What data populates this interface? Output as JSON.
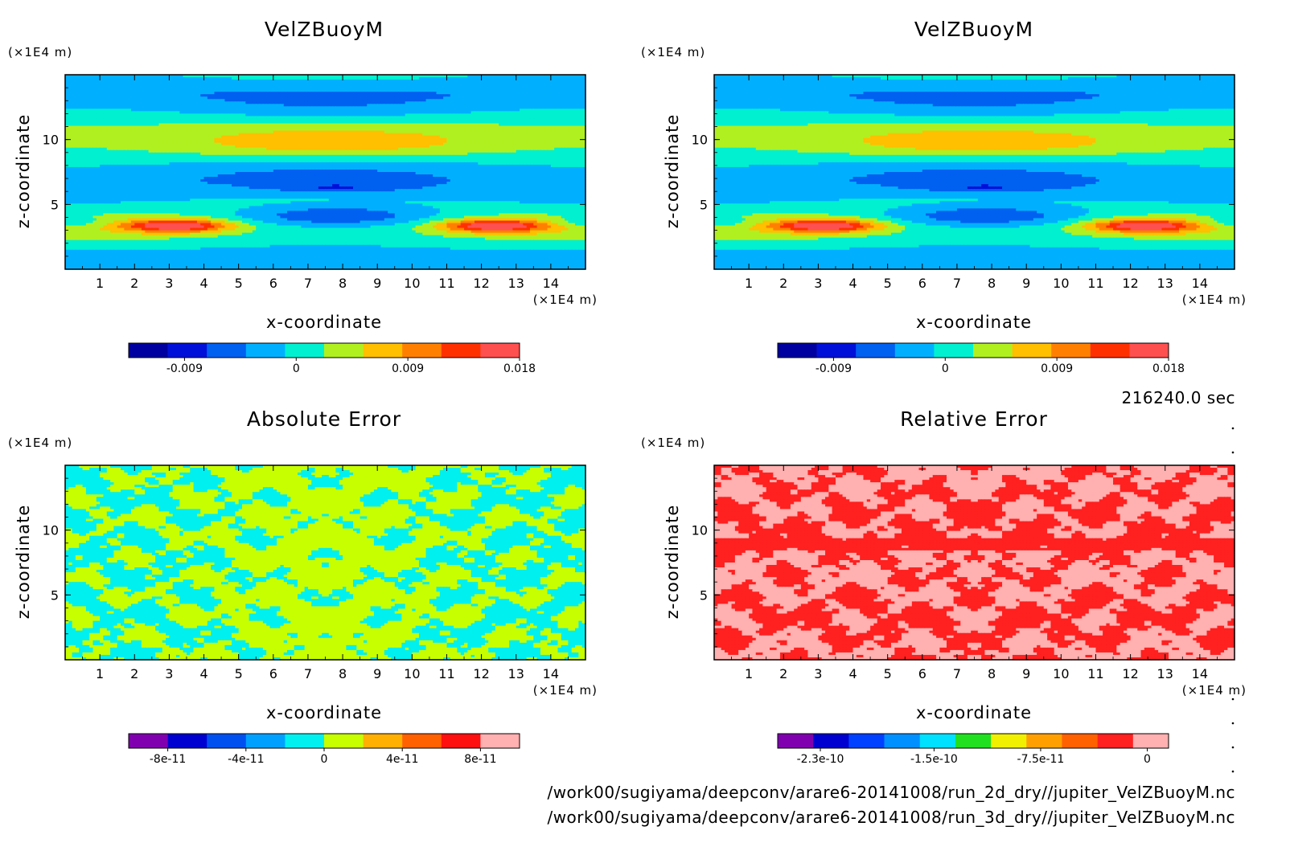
{
  "time_label": "216240.0 sec",
  "file_paths": [
    "/work00/sugiyama/deepconv/arare6-20141008/run_2d_dry//jupiter_VelZBuoyM.nc",
    "/work00/sugiyama/deepconv/arare6-20141008/run_3d_dry//jupiter_VelZBuoyM.nc"
  ],
  "colors": {
    "velzbuoym_scale": [
      "#0000a0",
      "#0010d8",
      "#0060f0",
      "#00b0ff",
      "#00f0d0",
      "#b0f020",
      "#ffc000",
      "#ff8000",
      "#ff3000",
      "#ff5050"
    ],
    "abs_error_scale": [
      "#8000b0",
      "#0000d0",
      "#0050f0",
      "#00a0ff",
      "#00f0f0",
      "#c8ff00",
      "#ffb000",
      "#ff6000",
      "#ff1010",
      "#ffb0b0"
    ],
    "rel_error_scale": [
      "#8000b0",
      "#0000d0",
      "#0040ff",
      "#0090ff",
      "#00e0ff",
      "#20e020",
      "#f0f000",
      "#ffa000",
      "#ff6000",
      "#ff2020",
      "#ffb0b0"
    ]
  },
  "chart_data": [
    {
      "type": "heatmap",
      "title": "VelZBuoyM",
      "xlabel": "x-coordinate",
      "ylabel": "z-coordinate",
      "x_unit": "(×1E4 m)",
      "y_unit": "(×1E4 m)",
      "xlim": [
        0,
        15
      ],
      "ylim": [
        0,
        15
      ],
      "x_ticks": [
        "1",
        "2",
        "3",
        "4",
        "5",
        "6",
        "7",
        "8",
        "9",
        "10",
        "11",
        "12",
        "13",
        "14"
      ],
      "y_ticks": [
        "5",
        "10"
      ],
      "colorbar": {
        "levels": 10,
        "min": -0.0135,
        "max": 0.018,
        "labels": [
          "-0.009",
          "0",
          "0.009",
          "0.018"
        ]
      },
      "features": [
        {
          "kind": "negative_core",
          "x": [
            5.5,
            10.5
          ],
          "z": [
            3.2,
            5.0
          ],
          "min": -0.0135
        },
        {
          "kind": "positive_core",
          "x": [
            2.0,
            4.5
          ],
          "z": [
            2.5,
            4.0
          ],
          "max": 0.016
        },
        {
          "kind": "positive_core",
          "x": [
            11.0,
            13.5
          ],
          "z": [
            2.5,
            4.0
          ],
          "max": 0.016
        }
      ]
    },
    {
      "type": "heatmap",
      "title": "VelZBuoyM",
      "xlabel": "x-coordinate",
      "ylabel": "z-coordinate",
      "x_unit": "(×1E4 m)",
      "y_unit": "(×1E4 m)",
      "xlim": [
        0,
        15
      ],
      "ylim": [
        0,
        15
      ],
      "x_ticks": [
        "1",
        "2",
        "3",
        "4",
        "5",
        "6",
        "7",
        "8",
        "9",
        "10",
        "11",
        "12",
        "13",
        "14"
      ],
      "y_ticks": [
        "5",
        "10"
      ],
      "colorbar": {
        "levels": 10,
        "min": -0.0135,
        "max": 0.018,
        "labels": [
          "-0.009",
          "0",
          "0.009",
          "0.018"
        ]
      },
      "features": [
        {
          "kind": "negative_core",
          "x": [
            5.5,
            10.5
          ],
          "z": [
            3.2,
            5.0
          ],
          "min": -0.0135
        },
        {
          "kind": "positive_core",
          "x": [
            2.0,
            4.5
          ],
          "z": [
            2.5,
            4.0
          ],
          "max": 0.016
        },
        {
          "kind": "positive_core",
          "x": [
            11.0,
            13.5
          ],
          "z": [
            2.5,
            4.0
          ],
          "max": 0.016
        }
      ]
    },
    {
      "type": "heatmap",
      "title": "Absolute Error",
      "xlabel": "x-coordinate",
      "ylabel": "z-coordinate",
      "x_unit": "(×1E4 m)",
      "y_unit": "(×1E4 m)",
      "xlim": [
        0,
        15
      ],
      "ylim": [
        0,
        15
      ],
      "x_ticks": [
        "1",
        "2",
        "3",
        "4",
        "5",
        "6",
        "7",
        "8",
        "9",
        "10",
        "11",
        "12",
        "13",
        "14"
      ],
      "y_ticks": [
        "5",
        "10"
      ],
      "colorbar": {
        "levels": 10,
        "min": -1e-10,
        "max": 1e-10,
        "labels": [
          "-8e-11",
          "-4e-11",
          "0",
          "4e-11",
          "8e-11"
        ]
      },
      "dominant_levels": [
        "0",
        "2e-11"
      ]
    },
    {
      "type": "heatmap",
      "title": "Relative Error",
      "xlabel": "x-coordinate",
      "ylabel": "z-coordinate",
      "x_unit": "(×1E4 m)",
      "y_unit": "(×1E4 m)",
      "xlim": [
        0,
        15
      ],
      "ylim": [
        0,
        15
      ],
      "x_ticks": [
        "1",
        "2",
        "3",
        "4",
        "5",
        "6",
        "7",
        "8",
        "9",
        "10",
        "11",
        "12",
        "13",
        "14"
      ],
      "y_ticks": [
        "5",
        "10"
      ],
      "colorbar": {
        "levels": 11,
        "min": -2.6e-10,
        "max": 1.5e-11,
        "labels": [
          "-2.3e-10",
          "-1.5e-10",
          "-7.5e-11",
          "0"
        ]
      },
      "dominant_levels": [
        "-2.5e-11",
        "0"
      ]
    }
  ]
}
